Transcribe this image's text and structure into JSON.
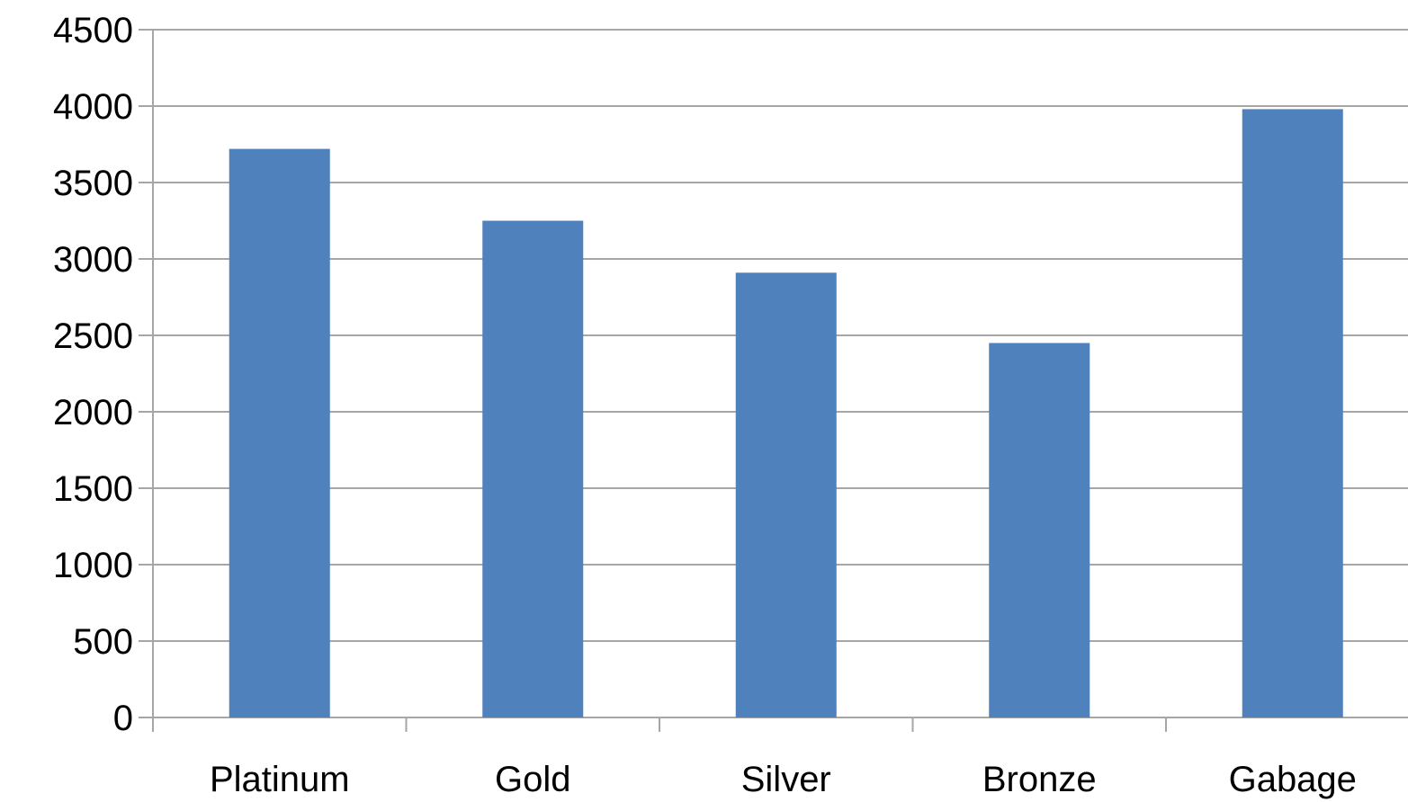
{
  "chart_data": {
    "type": "bar",
    "title": "",
    "xlabel": "",
    "ylabel": "",
    "categories": [
      "Platinum",
      "Gold",
      "Silver",
      "Bronze",
      "Gabage"
    ],
    "values": [
      3720,
      3250,
      2910,
      2450,
      3980
    ],
    "ylim": [
      0,
      4500
    ],
    "yticks": [
      0,
      500,
      1000,
      1500,
      2000,
      2500,
      3000,
      3500,
      4000,
      4500
    ],
    "ytick_labels": [
      "0",
      "500",
      "1000",
      "1500",
      "2000",
      "2500",
      "3000",
      "3500",
      "4000",
      "4500"
    ],
    "grid": true,
    "legend": "none",
    "bar_color": "#4f81bd",
    "grid_color": "#a6a6a6"
  }
}
